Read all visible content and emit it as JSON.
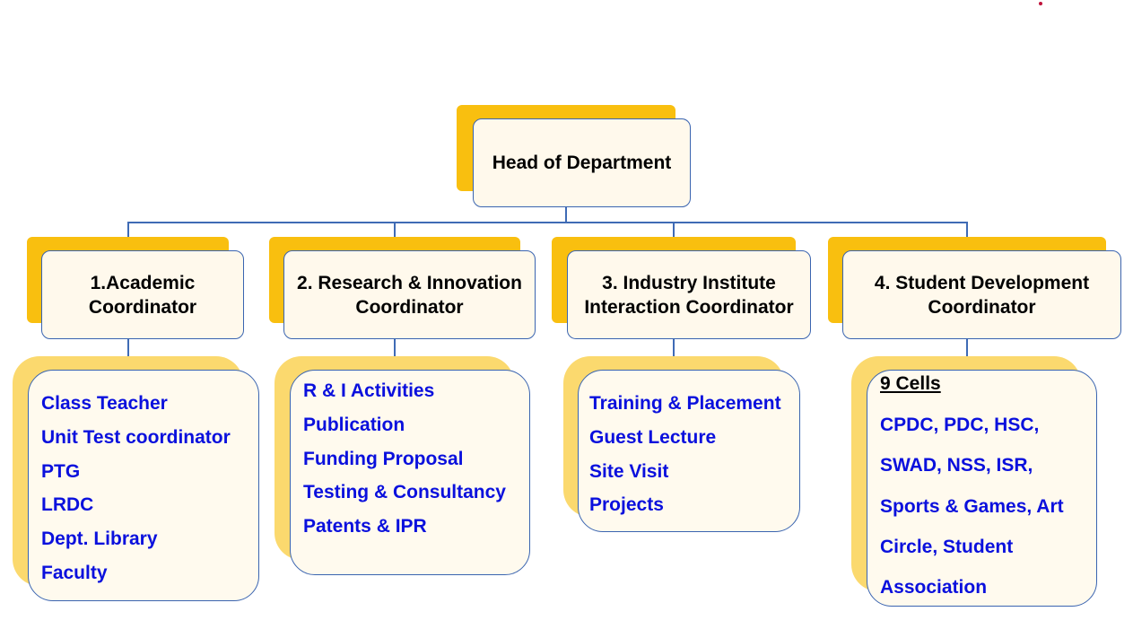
{
  "head": {
    "label": "Head of Department"
  },
  "coordinators": [
    {
      "line1": "1.Academic",
      "line2": "Coordinator"
    },
    {
      "line1": "2. Research & Innovation",
      "line2": "Coordinator"
    },
    {
      "line1": "3. Industry Institute",
      "line2": "Interaction Coordinator"
    },
    {
      "line1": "4. Student Development",
      "line2": "Coordinator"
    }
  ],
  "lists": [
    {
      "items": [
        "Class Teacher",
        "Unit Test coordinator",
        "PTG",
        "LRDC",
        "Dept. Library",
        "Faculty"
      ]
    },
    {
      "items": [
        "R & I Activities",
        "Publication",
        "Funding Proposal",
        "Testing & Consultancy",
        "Patents & IPR"
      ]
    },
    {
      "items": [
        "Training & Placement",
        "Guest Lecture",
        "Site Visit",
        "Projects"
      ]
    },
    {
      "heading": "9 Cells",
      "items": [
        "CPDC, PDC, HSC,",
        "SWAD, NSS, ISR,",
        "Sports & Games, Art",
        "Circle, Student",
        "Association"
      ]
    }
  ],
  "colors": {
    "shadow_dark": "#f9bf0f",
    "shadow_light": "#fbd96e",
    "box_border": "#3a64b0",
    "list_text": "#0a10dd",
    "connector": "#3f6bb5"
  }
}
